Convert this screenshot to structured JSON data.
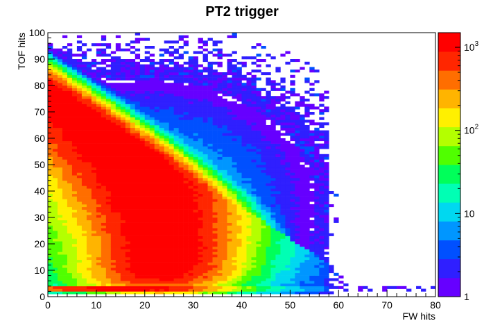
{
  "chart_data": {
    "type": "heatmap",
    "title": "PT2 trigger",
    "xlabel": "FW hits",
    "ylabel": "TOF hits",
    "xlim": [
      0,
      80
    ],
    "ylim": [
      0,
      100
    ],
    "x_ticks": [
      "0",
      "10",
      "20",
      "30",
      "40",
      "50",
      "60",
      "70",
      "80"
    ],
    "y_ticks": [
      "0",
      "10",
      "20",
      "30",
      "40",
      "50",
      "60",
      "70",
      "80",
      "90",
      "100"
    ],
    "z_scale": "log",
    "z_range": [
      1,
      1500
    ],
    "colorbar_labels": [
      {
        "base": "1",
        "exp": ""
      },
      {
        "base": "10",
        "exp": ""
      },
      {
        "base": "10",
        "exp": "2"
      },
      {
        "base": "10",
        "exp": "3"
      }
    ],
    "colormap": [
      "#6600ff",
      "#2f1fff",
      "#0050ff",
      "#0096ff",
      "#00d8f0",
      "#00ffb4",
      "#00ff5a",
      "#50ff00",
      "#b4ff00",
      "#fff000",
      "#ffb400",
      "#ff6e00",
      "#ff2600",
      "#ff0000"
    ],
    "grid": false,
    "distribution": {
      "description_hidden": false,
      "ridge_peak": {
        "x": 24,
        "y": 25
      },
      "band_peak": {
        "x": 5,
        "y": 3
      },
      "max_count": 1500
    }
  }
}
